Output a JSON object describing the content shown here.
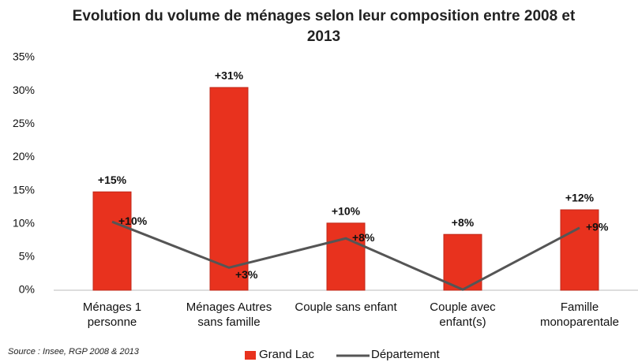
{
  "chart_data": {
    "type": "bar-line",
    "title": "Evolution du volume de ménages selon leur composition entre 2008 et 2013",
    "categories": [
      "Ménages 1 personne",
      "Ménages Autres sans famille",
      "Couple sans enfant",
      "Couple avec enfant(s)",
      "Famille monoparentale"
    ],
    "series": [
      {
        "name": "Grand Lac",
        "type": "bar",
        "color": "#e8321e",
        "values": [
          14.8,
          30.5,
          10.1,
          8.4,
          12.1
        ],
        "value_labels": [
          "+15%",
          "+31%",
          "+10%",
          "+8%",
          "+12%"
        ]
      },
      {
        "name": "Département",
        "type": "line",
        "color": "#555555",
        "values": [
          10.3,
          3.4,
          7.8,
          0.1,
          9.4
        ],
        "value_labels": [
          "+10%",
          "+3%",
          "+8%",
          null,
          "+9%"
        ]
      }
    ],
    "ylim": [
      0,
      35
    ],
    "yticks": [
      {
        "value": 0,
        "label": "0%"
      },
      {
        "value": 5,
        "label": "5%"
      },
      {
        "value": 10,
        "label": "10%"
      },
      {
        "value": 15,
        "label": "15%"
      },
      {
        "value": 20,
        "label": "20%"
      },
      {
        "value": 25,
        "label": "25%"
      },
      {
        "value": 30,
        "label": "30%"
      },
      {
        "value": 35,
        "label": "35%"
      }
    ],
    "source": "Source : Insee, RGP 2008 & 2013"
  }
}
